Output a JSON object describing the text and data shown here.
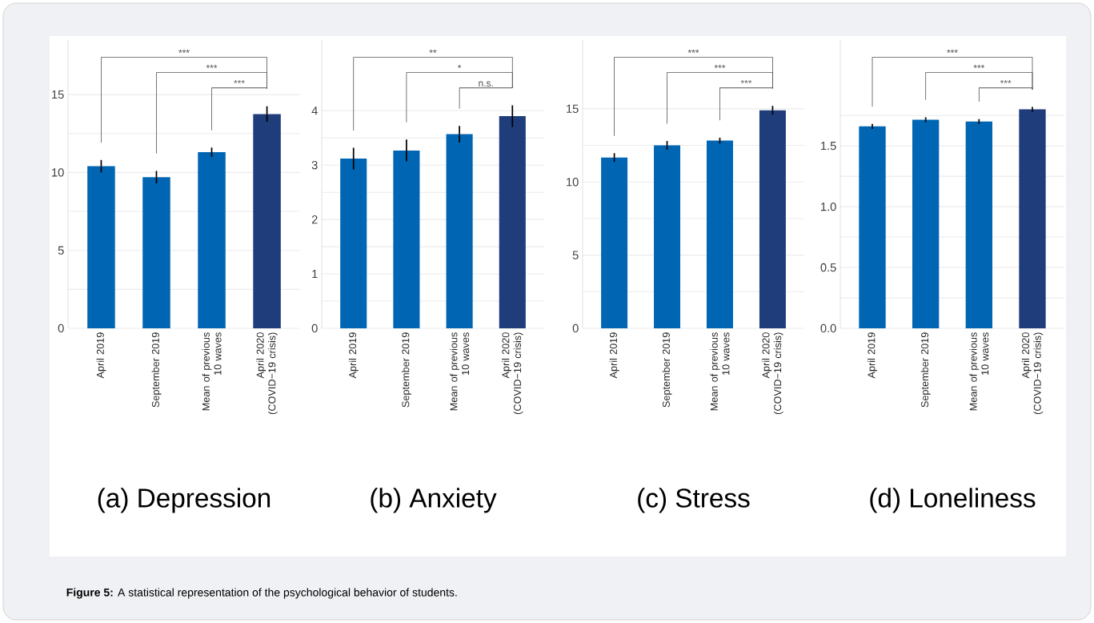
{
  "chart_data": [
    {
      "type": "bar",
      "title": "(a) Depression",
      "categories": [
        "April 2019",
        "September 2019",
        "Mean of previous 10 waves",
        "April 2020 (COVID−19 crisis)"
      ],
      "values": [
        10.4,
        9.7,
        11.3,
        13.75
      ],
      "errors": [
        0.4,
        0.4,
        0.3,
        0.5
      ],
      "colors": [
        "#0066b3",
        "#0066b3",
        "#0066b3",
        "#1f3d7a"
      ],
      "ylim": [
        0,
        18.5
      ],
      "yticks": [
        0,
        {
          "value": 2.5,
          "label": null
        },
        5,
        {
          "value": 7.5,
          "label": null
        },
        10,
        {
          "value": 12.5,
          "label": null
        },
        15
      ],
      "grid": "y",
      "annotations": [
        "***",
        "***",
        "***",
        "**Figure 5:** A statistical representation of the psychological behavior of students."
      ]
    },
    {
      "type": "bar",
      "title": "(b) Anxiety",
      "categories": [
        "April 2019",
        "September 2019",
        "Mean of previous 10 waves",
        "April 2020 (COVID−19 crisis)"
      ],
      "values": [
        3.12,
        3.27,
        3.57,
        3.9
      ],
      "errors": [
        0.2,
        0.2,
        0.15,
        0.2
      ],
      "colors": [
        "#0066b3",
        "#0066b3",
        "#0066b3",
        "#1f3d7a"
      ],
      "ylim": [
        0,
        5.3
      ],
      "yticks": [
        0,
        {
          "value": 0.5,
          "label": null
        },
        1,
        {
          "value": 1.5,
          "label": null
        },
        2,
        {
          "value": 2.5,
          "label": null
        },
        3,
        {
          "value": 3.5,
          "label": null
        },
        4
      ],
      "grid": "y",
      "annotations": [
        "**",
        "*",
        "n.s."
      ]
    },
    {
      "type": "bar",
      "title": "(c) Stress",
      "categories": [
        "April 2019",
        "September 2019",
        "Mean of previous 10 waves",
        "April 2020 (COVID−19 crisis)"
      ],
      "values": [
        11.67,
        12.5,
        12.83,
        14.9
      ],
      "errors": [
        0.3,
        0.3,
        0.2,
        0.3
      ],
      "colors": [
        "#0066b3",
        "#0066b3",
        "#0066b3",
        "#1f3d7a"
      ],
      "ylim": [
        0,
        19.7
      ],
      "yticks": [
        0,
        {
          "value": 2.5,
          "label": null
        },
        5,
        {
          "value": 7.5,
          "label": null
        },
        10,
        {
          "value": 12.5,
          "label": null
        },
        15
      ],
      "grid": "y",
      "annotations": [
        "***",
        "***",
        "***"
      ]
    },
    {
      "type": "bar",
      "title": "(d) Loneliness",
      "categories": [
        "April 2019",
        "September 2019",
        "Mean of previous 10 waves",
        "April 2020 (COVID−19 crisis)"
      ],
      "values": [
        1.66,
        1.715,
        1.7,
        1.8
      ],
      "errors": [
        0.02,
        0.02,
        0.02,
        0.02
      ],
      "colors": [
        "#0066b3",
        "#0066b3",
        "#0066b3",
        "#1f3d7a"
      ],
      "ylim": [
        0,
        2.37
      ],
      "yticks": [
        {
          "value": 0,
          "label": "0.0"
        },
        {
          "value": 0.25,
          "label": null
        },
        0.5,
        {
          "value": 0.75,
          "label": null
        },
        {
          "value": 1,
          "label": "1.0"
        },
        {
          "value": 1.25,
          "label": null
        },
        1.5,
        {
          "value": 1.75,
          "label": null
        }
      ],
      "grid": "y",
      "annotations": [
        "***",
        "***",
        "***"
      ]
    }
  ]
}
